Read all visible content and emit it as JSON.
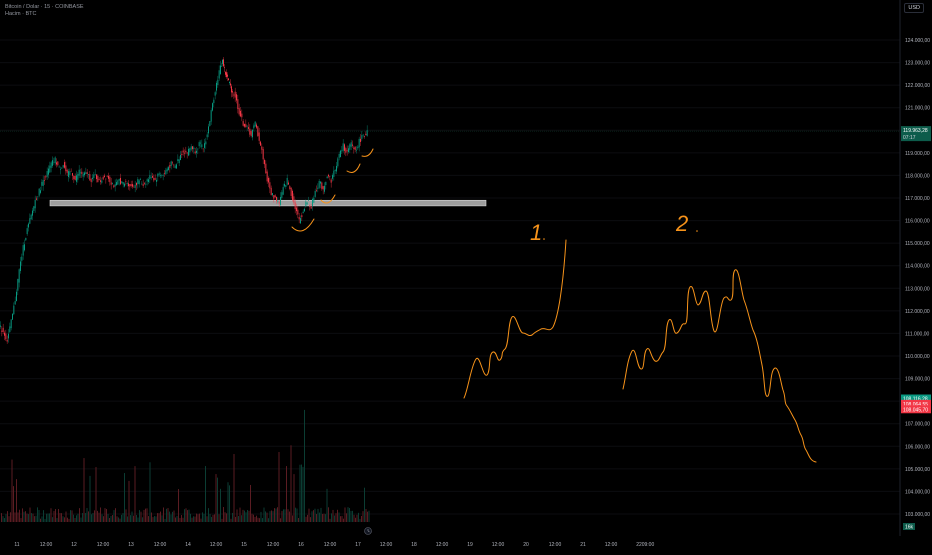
{
  "legend": {
    "title": "Bitcoin / Dolar · 15 · COINBASE",
    "subtitle": "Hacim · BTC"
  },
  "currency": "USD",
  "chart_data": {
    "type": "candlestick",
    "y_ticks": [
      "124.000,00",
      "123.000,00",
      "122.000,00",
      "121.000,00",
      "120.000,00",
      "119.000,00",
      "118.000,00",
      "117.000,00",
      "116.000,00",
      "115.000,00",
      "114.000,00",
      "113.000,00",
      "112.000,00",
      "111.000,00",
      "110.000,00",
      "109.000,00",
      "108.000,00",
      "107.000,00",
      "106.000,00",
      "105.000,00",
      "104.000,00",
      "103.000,00"
    ],
    "y_tick_values": [
      124000,
      123000,
      122000,
      121000,
      120000,
      119000,
      118000,
      117000,
      116000,
      115000,
      114000,
      113000,
      112000,
      111000,
      110000,
      109000,
      108000,
      107000,
      106000,
      105000,
      104000,
      103000
    ],
    "x_ticks": [
      "11",
      "12:00",
      "12",
      "12:00",
      "13",
      "12:00",
      "14",
      "12:00",
      "15",
      "12:00",
      "16",
      "12:00",
      "17",
      "12:00",
      "18",
      "12:00",
      "19",
      "12:00",
      "20",
      "12:00",
      "21",
      "12:00",
      "22",
      "09:00"
    ],
    "price_path": [
      [
        0,
        111300
      ],
      [
        4,
        111100
      ],
      [
        8,
        110700
      ],
      [
        12,
        111500
      ],
      [
        16,
        112500
      ],
      [
        20,
        113800
      ],
      [
        24,
        114800
      ],
      [
        28,
        115600
      ],
      [
        32,
        116200
      ],
      [
        36,
        116900
      ],
      [
        40,
        117300
      ],
      [
        44,
        117800
      ],
      [
        48,
        118100
      ],
      [
        52,
        118500
      ],
      [
        56,
        118700
      ],
      [
        60,
        118300
      ],
      [
        64,
        118500
      ],
      [
        68,
        118000
      ],
      [
        72,
        118200
      ],
      [
        76,
        117800
      ],
      [
        80,
        118200
      ],
      [
        84,
        118000
      ],
      [
        88,
        118100
      ],
      [
        92,
        117800
      ],
      [
        96,
        118000
      ],
      [
        100,
        117700
      ],
      [
        104,
        117900
      ],
      [
        108,
        118000
      ],
      [
        112,
        117700
      ],
      [
        116,
        117500
      ],
      [
        120,
        117800
      ],
      [
        124,
        117600
      ],
      [
        128,
        117700
      ],
      [
        132,
        117500
      ],
      [
        136,
        117600
      ],
      [
        140,
        117800
      ],
      [
        144,
        117600
      ],
      [
        148,
        117800
      ],
      [
        152,
        118000
      ],
      [
        156,
        117800
      ],
      [
        160,
        118100
      ],
      [
        164,
        118000
      ],
      [
        168,
        118300
      ],
      [
        172,
        118500
      ],
      [
        176,
        118400
      ],
      [
        180,
        118800
      ],
      [
        184,
        119100
      ],
      [
        188,
        119000
      ],
      [
        192,
        119300
      ],
      [
        196,
        119100
      ],
      [
        200,
        119400
      ],
      [
        204,
        119200
      ],
      [
        208,
        119800
      ],
      [
        212,
        120800
      ],
      [
        216,
        121800
      ],
      [
        220,
        122600
      ],
      [
        223,
        123100
      ],
      [
        226,
        122500
      ],
      [
        229,
        122200
      ],
      [
        232,
        121800
      ],
      [
        236,
        121500
      ],
      [
        240,
        120800
      ],
      [
        244,
        120300
      ],
      [
        248,
        120100
      ],
      [
        252,
        119800
      ],
      [
        256,
        120300
      ],
      [
        260,
        119600
      ],
      [
        264,
        118800
      ],
      [
        268,
        117800
      ],
      [
        272,
        117200
      ],
      [
        276,
        117000
      ],
      [
        280,
        116800
      ],
      [
        284,
        117400
      ],
      [
        288,
        117800
      ],
      [
        292,
        117200
      ],
      [
        296,
        116600
      ],
      [
        300,
        116000
      ],
      [
        304,
        116400
      ],
      [
        308,
        116900
      ],
      [
        312,
        116600
      ],
      [
        316,
        117300
      ],
      [
        320,
        117700
      ],
      [
        324,
        117400
      ],
      [
        328,
        118000
      ],
      [
        332,
        117800
      ],
      [
        336,
        118300
      ],
      [
        340,
        118900
      ],
      [
        344,
        119300
      ],
      [
        348,
        119000
      ],
      [
        352,
        119400
      ],
      [
        356,
        119100
      ],
      [
        360,
        119500
      ],
      [
        364,
        119800
      ],
      [
        368,
        119900
      ]
    ],
    "current_price_label": "119.963,28",
    "countdown_label": "07:17",
    "current_price": 119963.28,
    "support_zone": {
      "x_start": 50,
      "x_end": 486,
      "y_top": 116900,
      "y_bottom": 116650
    },
    "axis_markers": [
      {
        "label": "108.116,28",
        "color": "#089981",
        "value": 108116.28
      },
      {
        "label": "108.064,55",
        "color": "#f23645",
        "value": 107880
      },
      {
        "label": "108.045,70",
        "color": "#f23645",
        "value": 107640
      }
    ],
    "volume_label": "16k",
    "annotations": {
      "label_1": "1",
      "label_2": "2",
      "color": "#f7931a"
    }
  }
}
